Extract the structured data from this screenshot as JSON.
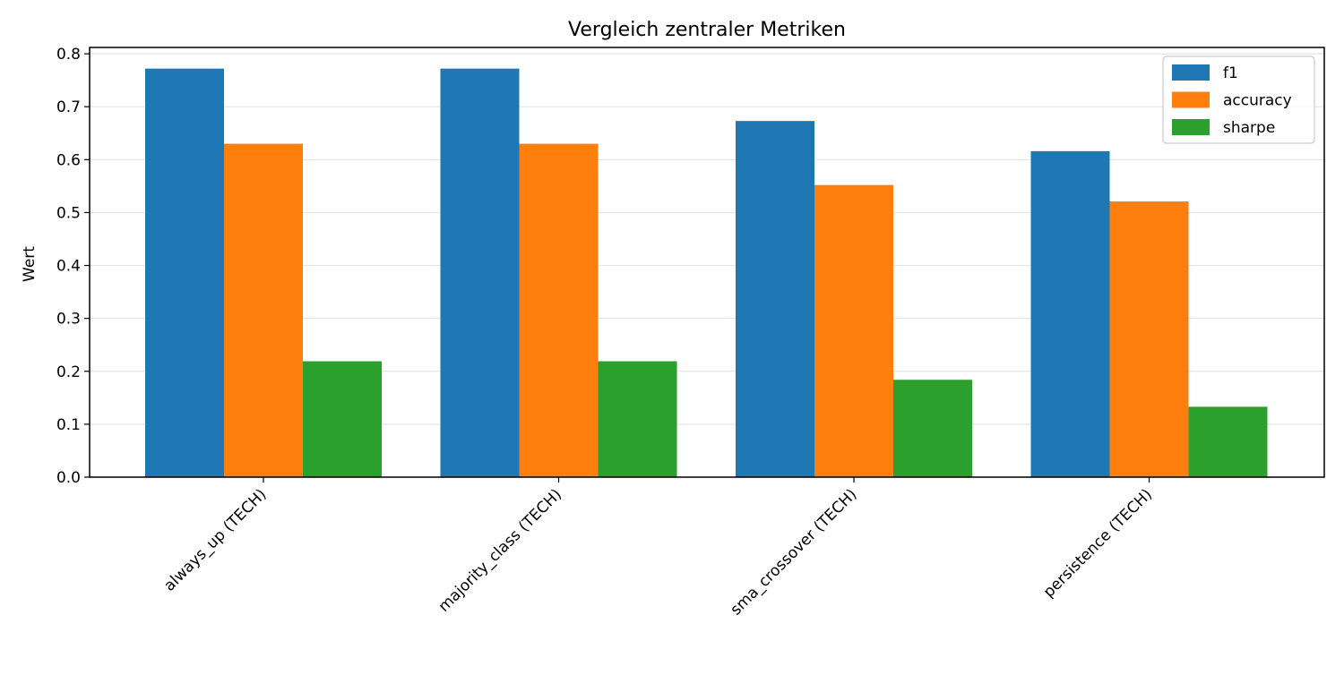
{
  "chart_data": {
    "type": "bar",
    "title": "Vergleich zentraler Metriken",
    "xlabel": "",
    "ylabel": "Wert",
    "categories": [
      "always_up (TECH)",
      "majority_class (TECH)",
      "sma_crossover (TECH)",
      "persistence (TECH)"
    ],
    "series": [
      {
        "name": "f1",
        "color": "#1f77b4",
        "values": [
          0.772,
          0.772,
          0.673,
          0.616
        ]
      },
      {
        "name": "accuracy",
        "color": "#ff7f0e",
        "values": [
          0.63,
          0.63,
          0.552,
          0.521
        ]
      },
      {
        "name": "sharpe",
        "color": "#2ca02c",
        "values": [
          0.219,
          0.219,
          0.184,
          0.133
        ]
      }
    ],
    "ylim": [
      0,
      0.812
    ],
    "yticks": [
      0.0,
      0.1,
      0.2,
      0.3,
      0.4,
      0.5,
      0.6,
      0.7,
      0.8
    ],
    "ytick_labels": [
      "0.0",
      "0.1",
      "0.2",
      "0.3",
      "0.4",
      "0.5",
      "0.6",
      "0.7",
      "0.8"
    ],
    "grid": "y-axis, light",
    "legend_position": "top-right"
  }
}
